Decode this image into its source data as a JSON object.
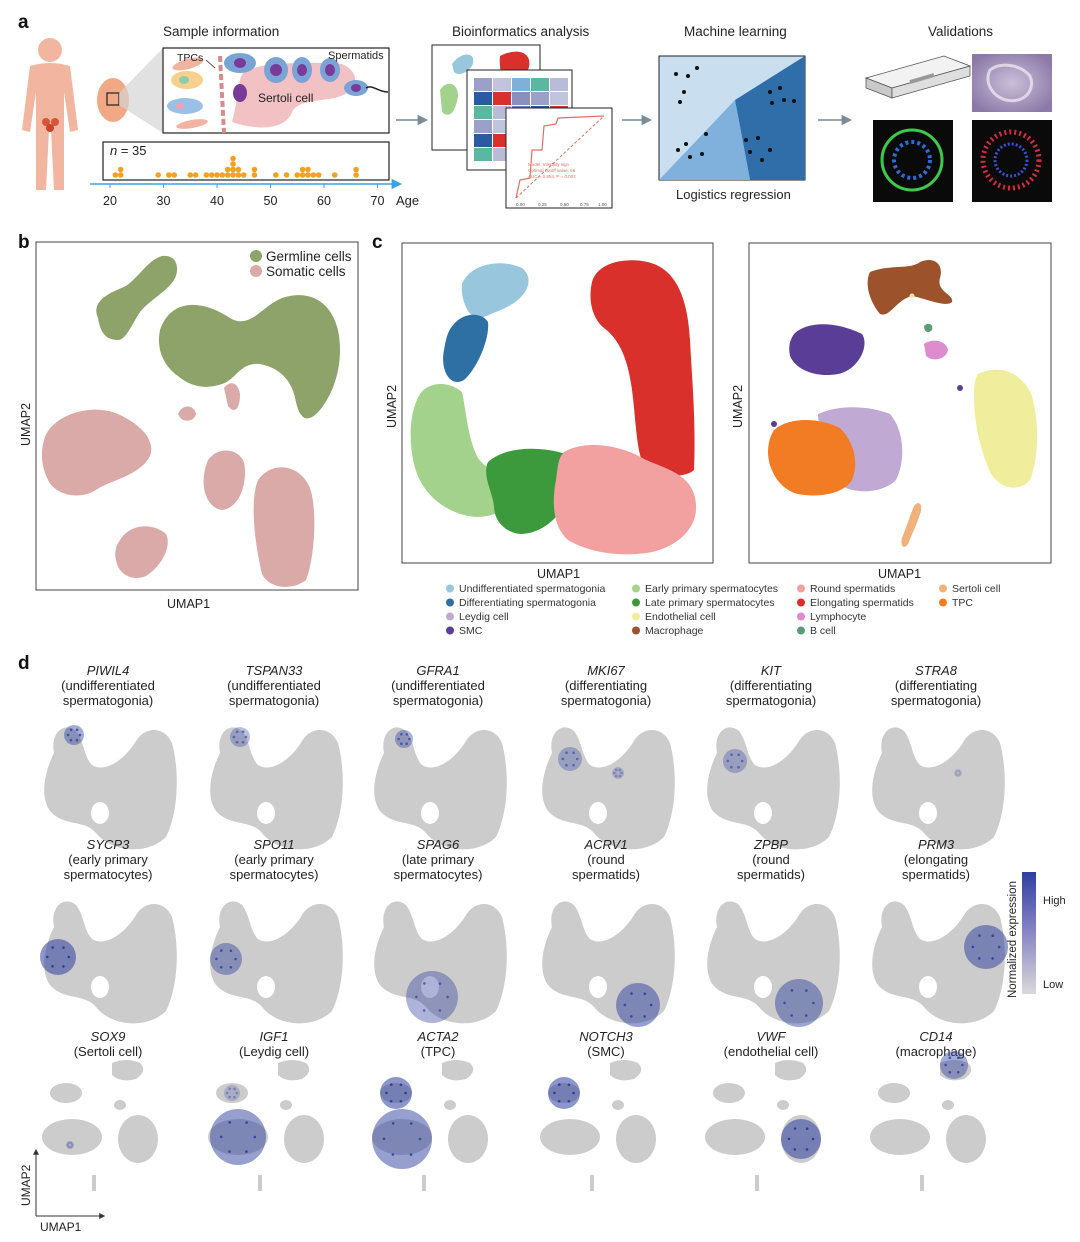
{
  "panel_labels": {
    "a": "a",
    "b": "b",
    "c": "c",
    "d": "d"
  },
  "panel_a": {
    "sample_info_title": "Sample information",
    "bioinfo_title": "Bioinformatics analysis",
    "ml_title": "Machine learning",
    "validations_title": "Validations",
    "tpcs_label": "TPCs",
    "spermatids_label": "Spermatids",
    "sertoli_label": "Sertoli cell",
    "n_var": "n",
    "n_value": " = 35",
    "age_label": "Age",
    "age_ticks": [
      "20",
      "30",
      "40",
      "50",
      "60",
      "70"
    ],
    "ml_caption": "Logistics regression",
    "roc_legend": [
      "Model: Infertility sign",
      "Optimal cutoff value: 66",
      "AUC = 0.854, P = 0.002"
    ],
    "roc_ticks": [
      "0.00",
      "0.25",
      "0.50",
      "0.75",
      "1.00"
    ],
    "ages": [
      21,
      22,
      22,
      29,
      31,
      32,
      35,
      36,
      38,
      39,
      40,
      41,
      42,
      42,
      43,
      43,
      43,
      43,
      44,
      44,
      45,
      47,
      47,
      51,
      53,
      55,
      56,
      56,
      57,
      57,
      58,
      59,
      62,
      66,
      66
    ]
  },
  "panel_b": {
    "legend": [
      {
        "label": "Germline cells",
        "color": "#8da36a"
      },
      {
        "label": "Somatic cells",
        "color": "#d9aaa8"
      }
    ],
    "xlabel": "UMAP1",
    "ylabel": "UMAP2"
  },
  "panel_c": {
    "xlabel": "UMAP1",
    "ylabel": "UMAP2",
    "legend": [
      {
        "label": "Undifferentiated spermatogonia",
        "color": "#98c7dd"
      },
      {
        "label": "Differentiating spermatogonia",
        "color": "#2e6fa4"
      },
      {
        "label": "Leydig cell",
        "color": "#c0aad4"
      },
      {
        "label": "SMC",
        "color": "#5a3d96"
      },
      {
        "label": "Early primary spermatocytes",
        "color": "#a3d28c"
      },
      {
        "label": "Late primary spermatocytes",
        "color": "#3c9a3c"
      },
      {
        "label": "Endothelial cell",
        "color": "#f0ee9c"
      },
      {
        "label": "Macrophage",
        "color": "#9c522a"
      },
      {
        "label": "Round spermatids",
        "color": "#f2a0a0"
      },
      {
        "label": "Elongating spermatids",
        "color": "#d9302c"
      },
      {
        "label": "Lymphocyte",
        "color": "#de8ccd"
      },
      {
        "label": "B cell",
        "color": "#5a9c7a"
      },
      {
        "label": "Sertoli cell",
        "color": "#f2b07a"
      },
      {
        "label": "TPC",
        "color": "#f27c24"
      }
    ]
  },
  "panel_d": {
    "colorbar_title": "Normalized expression",
    "high": "High",
    "low": "Low",
    "xlabel": "UMAP1",
    "ylabel": "UMAP2",
    "genes": [
      {
        "gene": "PIWIL4",
        "d1": "(undifferentiated",
        "d2": "spermatogonia)"
      },
      {
        "gene": "TSPAN33",
        "d1": "(undifferentiated",
        "d2": "spermatogonia)"
      },
      {
        "gene": "GFRA1",
        "d1": "(undifferentiated",
        "d2": "spermatogonia)"
      },
      {
        "gene": "MKI67",
        "d1": "(differentiating",
        "d2": "spermatogonia)"
      },
      {
        "gene": "KIT",
        "d1": "(differentiating",
        "d2": "spermatogonia)"
      },
      {
        "gene": "STRA8",
        "d1": "(differentiating",
        "d2": "spermatogonia)"
      },
      {
        "gene": "SYCP3",
        "d1": "(early primary",
        "d2": "spermatocytes)"
      },
      {
        "gene": "SPO11",
        "d1": "(early primary",
        "d2": "spermatocytes)"
      },
      {
        "gene": "SPAG6",
        "d1": "(late primary",
        "d2": "spermatocytes)"
      },
      {
        "gene": "ACRV1",
        "d1": "(round",
        "d2": "spermatids)"
      },
      {
        "gene": "ZPBP",
        "d1": "(round",
        "d2": "spermatids)"
      },
      {
        "gene": "PRM3",
        "d1": "(elongating",
        "d2": "spermatids)"
      },
      {
        "gene": "SOX9",
        "d1": "(Sertoli cell)",
        "d2": ""
      },
      {
        "gene": "IGF1",
        "d1": "(Leydig cell)",
        "d2": ""
      },
      {
        "gene": "ACTA2",
        "d1": "(TPC)",
        "d2": ""
      },
      {
        "gene": "NOTCH3",
        "d1": "(SMC)",
        "d2": ""
      },
      {
        "gene": "VWF",
        "d1": "(endothelial cell)",
        "d2": ""
      },
      {
        "gene": "CD14",
        "d1": "(macrophage)",
        "d2": ""
      }
    ]
  },
  "colors": {
    "germ_gray": "#cccccc",
    "expr_high": "#2f3f9e",
    "expr_low": "#d9d9d9",
    "orange_dot": "#f5a023",
    "arrow": "#7a8a96",
    "axis_blue": "#3aa3e0"
  }
}
